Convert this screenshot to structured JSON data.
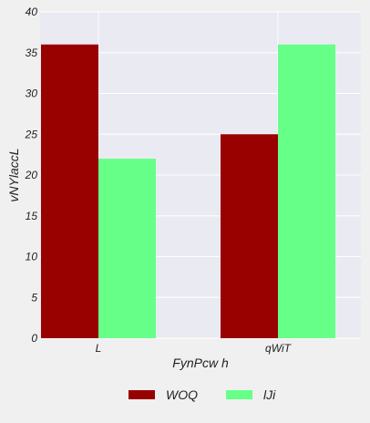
{
  "chart_data": {
    "type": "bar",
    "title": "",
    "xlabel": "FynPcw h",
    "ylabel": "vNYlaccL",
    "categories": [
      "L",
      "qWiT"
    ],
    "series": [
      {
        "name": "WOQ",
        "values": [
          36,
          25
        ],
        "color": "#990000"
      },
      {
        "name": "lJi",
        "values": [
          22,
          36
        ],
        "color": "#66ff88"
      }
    ],
    "ylim": [
      0,
      40
    ],
    "yticks": [
      0,
      5,
      10,
      15,
      20,
      25,
      30,
      35,
      40
    ],
    "grid": true,
    "legend_position": "bottom-center",
    "plot_background": "#eaeaf2"
  }
}
